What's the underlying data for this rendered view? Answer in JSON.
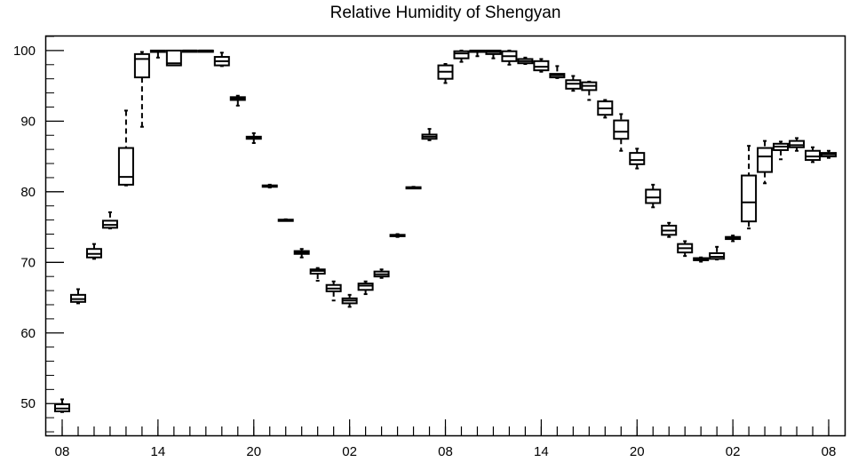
{
  "chart_data": {
    "type": "box",
    "title": "Relative Humidity of Shengyan",
    "xlabel": "",
    "ylabel": "",
    "ylim": [
      45.5,
      102
    ],
    "y_ticks": [
      50,
      60,
      70,
      80,
      90,
      100
    ],
    "y_minor_step": 2,
    "x_range": [
      0,
      48.5
    ],
    "x_tick_labels": [
      {
        "label": "08",
        "hour": 0
      },
      {
        "label": "14",
        "hour": 6
      },
      {
        "label": "20",
        "hour": 12
      },
      {
        "label": "02",
        "hour": 18
      },
      {
        "label": "08",
        "hour": 24
      },
      {
        "label": "14",
        "hour": 30
      },
      {
        "label": "20",
        "hour": 36
      },
      {
        "label": "02",
        "hour": 42
      },
      {
        "label": "08",
        "hour": 48
      }
    ],
    "grid": false,
    "boxes": [
      {
        "hour": 0,
        "min": 48.8,
        "q1": 48.9,
        "median": 49.3,
        "q3": 49.9,
        "max": 50.6
      },
      {
        "hour": 1,
        "min": 64.2,
        "q1": 64.4,
        "median": 64.8,
        "q3": 65.4,
        "max": 66.2
      },
      {
        "hour": 2,
        "min": 70.5,
        "q1": 70.7,
        "median": 71.2,
        "q3": 71.9,
        "max": 72.6
      },
      {
        "hour": 3,
        "min": 74.8,
        "q1": 74.9,
        "median": 75.3,
        "q3": 75.9,
        "max": 77.1
      },
      {
        "hour": 4,
        "min": 80.9,
        "q1": 81.0,
        "median": 82.1,
        "q3": 86.2,
        "max": 91.5
      },
      {
        "hour": 5,
        "min": 89.2,
        "q1": 96.2,
        "median": 98.8,
        "q3": 99.5,
        "max": 99.8
      },
      {
        "hour": 6,
        "min": 99.0,
        "q1": 99.8,
        "median": 99.9,
        "q3": 100.0,
        "max": 100.0
      },
      {
        "hour": 7,
        "min": 97.9,
        "q1": 97.9,
        "median": 98.2,
        "q3": 100.0,
        "max": 100.0
      },
      {
        "hour": 8,
        "min": 100.0,
        "q1": 100.0,
        "median": 100.0,
        "q3": 100.0,
        "max": 100.0
      },
      {
        "hour": 9,
        "min": 100.0,
        "q1": 100.0,
        "median": 100.0,
        "q3": 100.0,
        "max": 100.0
      },
      {
        "hour": 10,
        "min": 97.8,
        "q1": 97.9,
        "median": 98.5,
        "q3": 99.1,
        "max": 99.7
      },
      {
        "hour": 11,
        "min": 92.2,
        "q1": 93.0,
        "median": 93.2,
        "q3": 93.4,
        "max": 93.6
      },
      {
        "hour": 12,
        "min": 86.9,
        "q1": 87.5,
        "median": 87.7,
        "q3": 87.8,
        "max": 88.3
      },
      {
        "hour": 13,
        "min": 80.6,
        "q1": 80.7,
        "median": 80.8,
        "q3": 80.9,
        "max": 81.0
      },
      {
        "hour": 14,
        "min": 75.9,
        "q1": 75.95,
        "median": 76.0,
        "q3": 76.05,
        "max": 76.1
      },
      {
        "hour": 15,
        "min": 70.7,
        "q1": 71.2,
        "median": 71.4,
        "q3": 71.6,
        "max": 71.9
      },
      {
        "hour": 16,
        "min": 67.4,
        "q1": 68.4,
        "median": 68.8,
        "q3": 69.0,
        "max": 69.2
      },
      {
        "hour": 17,
        "min": 64.6,
        "q1": 65.9,
        "median": 66.3,
        "q3": 66.8,
        "max": 67.3
      },
      {
        "hour": 18,
        "min": 63.7,
        "q1": 64.2,
        "median": 64.6,
        "q3": 64.9,
        "max": 65.4
      },
      {
        "hour": 19,
        "min": 65.5,
        "q1": 66.1,
        "median": 66.7,
        "q3": 67.0,
        "max": 67.3
      },
      {
        "hour": 20,
        "min": 67.8,
        "q1": 68.0,
        "median": 68.3,
        "q3": 68.7,
        "max": 69.0
      },
      {
        "hour": 21,
        "min": 73.6,
        "q1": 73.7,
        "median": 73.8,
        "q3": 73.9,
        "max": 74.0
      },
      {
        "hour": 22,
        "min": 80.5,
        "q1": 80.55,
        "median": 80.6,
        "q3": 80.65,
        "max": 80.7
      },
      {
        "hour": 23,
        "min": 87.3,
        "q1": 87.5,
        "median": 87.8,
        "q3": 88.1,
        "max": 88.9
      },
      {
        "hour": 24,
        "min": 95.4,
        "q1": 96.0,
        "median": 97.0,
        "q3": 97.9,
        "max": 98.1
      },
      {
        "hour": 25,
        "min": 98.4,
        "q1": 98.9,
        "median": 99.6,
        "q3": 99.9,
        "max": 100.0
      },
      {
        "hour": 26,
        "min": 99.2,
        "q1": 99.8,
        "median": 99.9,
        "q3": 100.0,
        "max": 100.0
      },
      {
        "hour": 27,
        "min": 98.9,
        "q1": 99.5,
        "median": 99.8,
        "q3": 100.0,
        "max": 100.0
      },
      {
        "hour": 28,
        "min": 98.0,
        "q1": 98.5,
        "median": 99.2,
        "q3": 99.9,
        "max": 100.0
      },
      {
        "hour": 29,
        "min": 98.1,
        "q1": 98.2,
        "median": 98.5,
        "q3": 98.8,
        "max": 99.0
      },
      {
        "hour": 30,
        "min": 97.0,
        "q1": 97.2,
        "median": 97.7,
        "q3": 98.5,
        "max": 98.8
      },
      {
        "hour": 31,
        "min": 96.1,
        "q1": 96.2,
        "median": 96.5,
        "q3": 96.7,
        "max": 97.8
      },
      {
        "hour": 32,
        "min": 94.3,
        "q1": 94.6,
        "median": 95.3,
        "q3": 95.8,
        "max": 96.4
      },
      {
        "hour": 33,
        "min": 93.0,
        "q1": 94.4,
        "median": 95.0,
        "q3": 95.5,
        "max": 95.6
      },
      {
        "hour": 34,
        "min": 90.5,
        "q1": 90.9,
        "median": 91.8,
        "q3": 92.8,
        "max": 93.0
      },
      {
        "hour": 35,
        "min": 85.8,
        "q1": 87.5,
        "median": 88.5,
        "q3": 90.1,
        "max": 91.0
      },
      {
        "hour": 36,
        "min": 83.3,
        "q1": 83.9,
        "median": 84.5,
        "q3": 85.5,
        "max": 86.1
      },
      {
        "hour": 37,
        "min": 77.8,
        "q1": 78.4,
        "median": 79.2,
        "q3": 80.3,
        "max": 81.0
      },
      {
        "hour": 38,
        "min": 73.6,
        "q1": 73.9,
        "median": 74.5,
        "q3": 75.2,
        "max": 75.6
      },
      {
        "hour": 39,
        "min": 70.9,
        "q1": 71.4,
        "median": 72.0,
        "q3": 72.6,
        "max": 73.0
      },
      {
        "hour": 40,
        "min": 70.1,
        "q1": 70.3,
        "median": 70.5,
        "q3": 70.6,
        "max": 70.7
      },
      {
        "hour": 41,
        "min": 70.4,
        "q1": 70.5,
        "median": 70.8,
        "q3": 71.3,
        "max": 72.2
      },
      {
        "hour": 42,
        "min": 73.0,
        "q1": 73.3,
        "median": 73.5,
        "q3": 73.6,
        "max": 73.8
      },
      {
        "hour": 43,
        "min": 74.8,
        "q1": 75.8,
        "median": 78.5,
        "q3": 82.3,
        "max": 86.5
      },
      {
        "hour": 44,
        "min": 81.2,
        "q1": 82.8,
        "median": 85.0,
        "q3": 86.2,
        "max": 87.2
      },
      {
        "hour": 45,
        "min": 84.6,
        "q1": 85.9,
        "median": 86.4,
        "q3": 86.8,
        "max": 87.1
      },
      {
        "hour": 46,
        "min": 85.8,
        "q1": 86.3,
        "median": 86.6,
        "q3": 87.2,
        "max": 87.6
      },
      {
        "hour": 47,
        "min": 84.2,
        "q1": 84.5,
        "median": 85.0,
        "q3": 85.8,
        "max": 86.3
      },
      {
        "hour": 48,
        "min": 84.8,
        "q1": 85.0,
        "median": 85.3,
        "q3": 85.5,
        "max": 85.8
      }
    ]
  }
}
